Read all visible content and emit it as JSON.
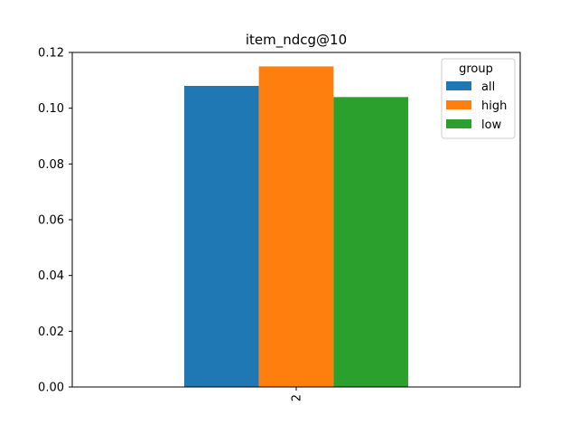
{
  "chart_data": {
    "type": "bar",
    "title": "item_ndcg@10",
    "xlabel": "",
    "ylabel": "",
    "categories": [
      "2"
    ],
    "series": [
      {
        "name": "all",
        "values": [
          0.108
        ],
        "color": "#1f77b4"
      },
      {
        "name": "high",
        "values": [
          0.115
        ],
        "color": "#ff7f0e"
      },
      {
        "name": "low",
        "values": [
          0.104
        ],
        "color": "#2ca02c"
      }
    ],
    "ylim": [
      0,
      0.12
    ],
    "yticks": [
      "0.00",
      "0.02",
      "0.04",
      "0.06",
      "0.08",
      "0.10",
      "0.12"
    ],
    "grid": false,
    "legend": {
      "title": "group",
      "placement": "top-right"
    }
  }
}
